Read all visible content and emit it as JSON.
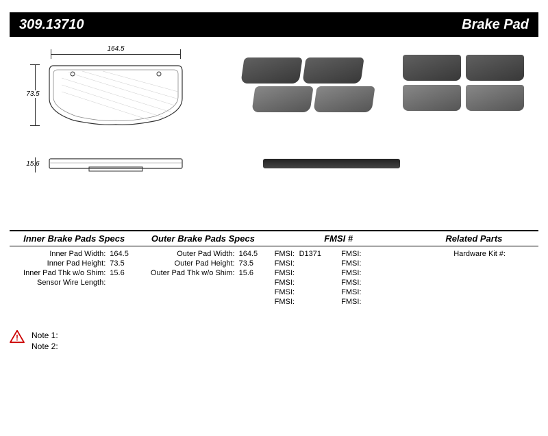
{
  "header": {
    "part_number": "309.13710",
    "product_type": "Brake Pad"
  },
  "diagram": {
    "width_label": "164.5",
    "height_label": "73.5",
    "thickness_label": "15.6"
  },
  "specs": {
    "inner": {
      "title": "Inner Brake Pads Specs",
      "rows": [
        {
          "label": "Inner Pad Width:",
          "value": "164.5"
        },
        {
          "label": "Inner Pad Height:",
          "value": "73.5"
        },
        {
          "label": "Inner Pad Thk w/o Shim:",
          "value": "15.6"
        },
        {
          "label": "Sensor Wire Length:",
          "value": ""
        }
      ]
    },
    "outer": {
      "title": "Outer Brake Pads Specs",
      "rows": [
        {
          "label": "Outer Pad Width:",
          "value": "164.5"
        },
        {
          "label": "Outer Pad Height:",
          "value": "73.5"
        },
        {
          "label": "Outer Pad Thk w/o Shim:",
          "value": "15.6"
        }
      ]
    },
    "fmsi": {
      "title": "FMSI #",
      "left": [
        {
          "key": "FMSI:",
          "val": "D1371"
        },
        {
          "key": "FMSI:",
          "val": ""
        },
        {
          "key": "FMSI:",
          "val": ""
        },
        {
          "key": "FMSI:",
          "val": ""
        },
        {
          "key": "FMSI:",
          "val": ""
        },
        {
          "key": "FMSI:",
          "val": ""
        }
      ],
      "right": [
        {
          "key": "FMSI:",
          "val": ""
        },
        {
          "key": "FMSI:",
          "val": ""
        },
        {
          "key": "FMSI:",
          "val": ""
        },
        {
          "key": "FMSI:",
          "val": ""
        },
        {
          "key": "FMSI:",
          "val": ""
        },
        {
          "key": "FMSI:",
          "val": ""
        }
      ]
    },
    "related": {
      "title": "Related Parts",
      "rows": [
        {
          "label": "Hardware Kit #:",
          "value": ""
        }
      ]
    }
  },
  "notes": {
    "note1_label": "Note 1:",
    "note1_text": "",
    "note2_label": "Note 2:",
    "note2_text": ""
  },
  "colors": {
    "header_bg": "#000000",
    "header_fg": "#ffffff",
    "line": "#000000",
    "warn_border": "#cc0000",
    "warn_fill": "#ffffff"
  }
}
